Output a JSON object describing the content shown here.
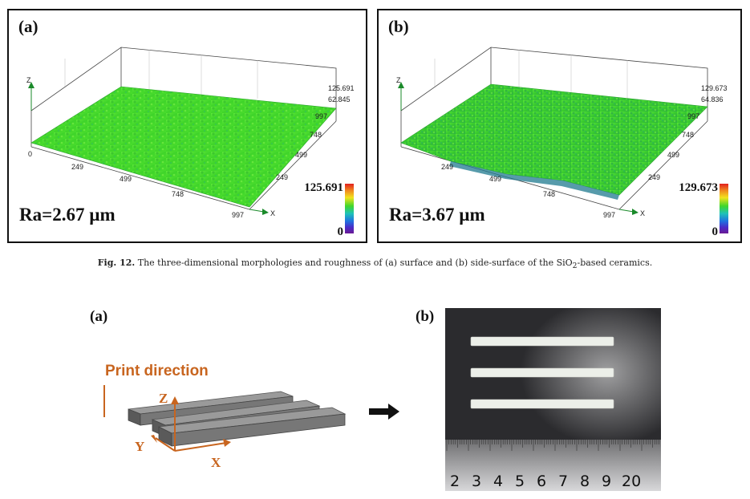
{
  "fig12": {
    "panel_a": {
      "label": "(a)",
      "ra": "Ra=2.67 µm",
      "cbar_max": "125.691",
      "cbar_min": "0",
      "z_ticks": [
        "125.691",
        "62.845"
      ],
      "x_ticks": [
        "0",
        "249",
        "499",
        "748",
        "997"
      ],
      "y_ticks": [
        "997",
        "748",
        "499",
        "249"
      ],
      "axis_z": "Z",
      "axis_x": "X"
    },
    "panel_b": {
      "label": "(b)",
      "ra": "Ra=3.67 µm",
      "cbar_max": "129.673",
      "cbar_min": "0",
      "z_ticks": [
        "129.673",
        "64.836"
      ],
      "x_ticks": [
        "249",
        "499",
        "748",
        "997"
      ],
      "y_ticks": [
        "997",
        "748",
        "499",
        "249"
      ],
      "axis_z": "Z",
      "axis_x": "X"
    },
    "caption_label": "Fig. 12.",
    "caption_text_1": "The three-dimensional morphologies and roughness of (a) surface and (b) side-surface of the SiO",
    "caption_sub": "2",
    "caption_text_2": "-based ceramics."
  },
  "fig13": {
    "label_a": "(a)",
    "label_b": "(b)",
    "print_direction": "Print direction",
    "axis_z": "Z",
    "axis_y": "Y",
    "axis_x": "X",
    "ruler_numbers": [
      "2",
      "3",
      "4",
      "5",
      "6",
      "7",
      "8",
      "9",
      "20"
    ]
  },
  "colors": {
    "surface_green": "#4ee02a",
    "axis_green": "#1a8a2a",
    "orange": "#c8651f",
    "bar_gray": "#8a8a8a"
  }
}
